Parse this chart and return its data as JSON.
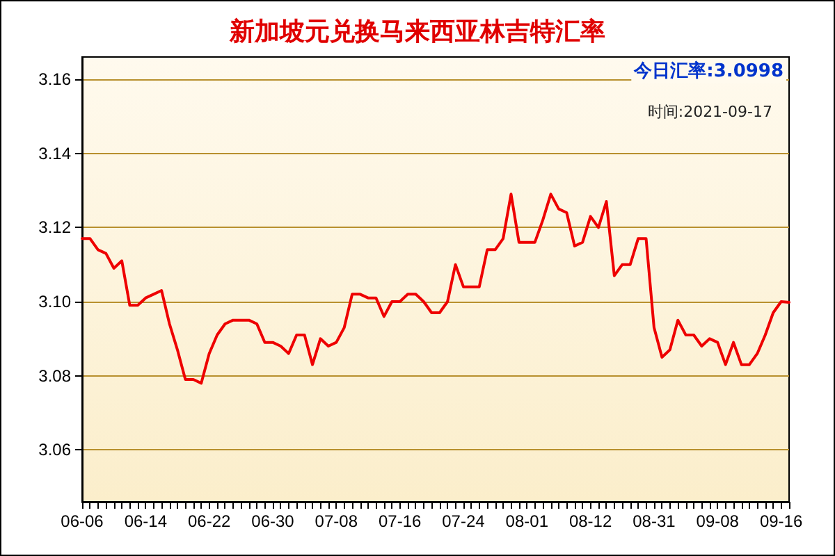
{
  "chart_data": {
    "type": "line",
    "title": "新加坡元兑换马来西亚林吉特汇率",
    "subtitle": "今日汇率:3.0998",
    "annotations": [
      "时间:2021-09-17"
    ],
    "categories": [
      "06-06",
      null,
      null,
      null,
      null,
      null,
      null,
      null,
      "06-14",
      null,
      null,
      null,
      null,
      null,
      null,
      null,
      "06-22",
      null,
      null,
      null,
      null,
      null,
      null,
      null,
      "06-30",
      null,
      null,
      null,
      null,
      null,
      null,
      null,
      "07-08",
      null,
      null,
      null,
      null,
      null,
      null,
      null,
      "07-16",
      null,
      null,
      null,
      null,
      null,
      null,
      null,
      "07-24",
      null,
      null,
      null,
      null,
      null,
      null,
      null,
      "08-01",
      null,
      null,
      null,
      null,
      null,
      null,
      null,
      "08-12",
      null,
      null,
      null,
      null,
      null,
      null,
      null,
      "08-31",
      null,
      null,
      null,
      null,
      null,
      null,
      null,
      "09-08",
      null,
      null,
      null,
      null,
      null,
      null,
      null,
      "09-16",
      null
    ],
    "series": [
      {
        "color": "#ee0000",
        "values": [
          3.117,
          3.117,
          3.114,
          3.113,
          3.109,
          3.111,
          3.099,
          3.099,
          3.101,
          3.102,
          3.103,
          3.094,
          3.087,
          3.079,
          3.079,
          3.078,
          3.086,
          3.091,
          3.094,
          3.095,
          3.095,
          3.095,
          3.094,
          3.089,
          3.089,
          3.088,
          3.086,
          3.091,
          3.091,
          3.083,
          3.09,
          3.088,
          3.089,
          3.093,
          3.102,
          3.102,
          3.101,
          3.101,
          3.096,
          3.1,
          3.1,
          3.102,
          3.102,
          3.1,
          3.097,
          3.097,
          3.1,
          3.11,
          3.104,
          3.104,
          3.104,
          3.114,
          3.114,
          3.117,
          3.129,
          3.116,
          3.116,
          3.116,
          3.122,
          3.129,
          3.125,
          3.124,
          3.115,
          3.116,
          3.123,
          3.12,
          3.127,
          3.107,
          3.11,
          3.11,
          3.117,
          3.117,
          3.093,
          3.085,
          3.087,
          3.095,
          3.091,
          3.091,
          3.088,
          3.09,
          3.089,
          3.083,
          3.089,
          3.083,
          3.083,
          3.086,
          3.091,
          3.097,
          3.1,
          3.0998
        ]
      }
    ],
    "ylim": [
      3.046,
      3.166
    ],
    "yticks": [
      3.06,
      3.08,
      {
        "value": 3.1,
        "label": "3.10"
      },
      3.12,
      3.14,
      3.16
    ],
    "grid": "y",
    "marker": "none",
    "line_style": "solid"
  }
}
